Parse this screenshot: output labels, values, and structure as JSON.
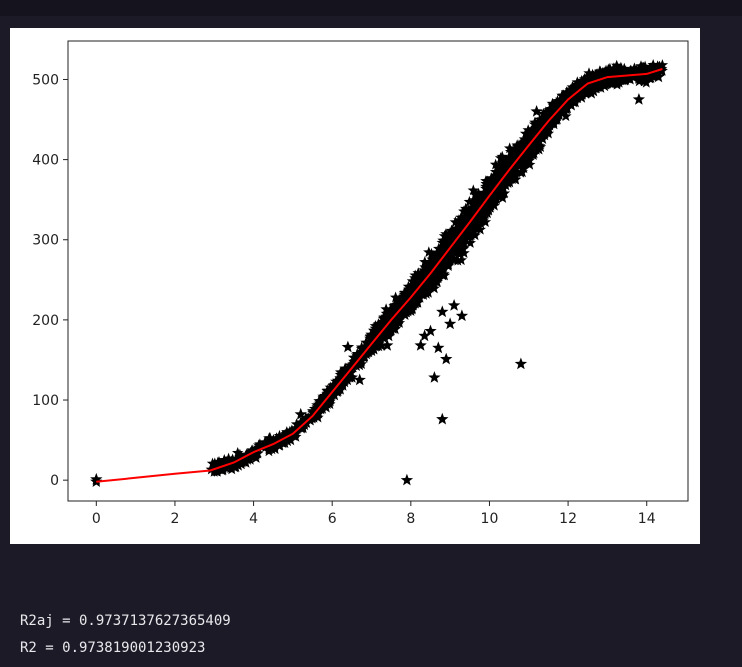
{
  "output": {
    "lines": [
      "R2aj = 0.9737137627365409",
      "R2 = 0.973819001230923"
    ]
  },
  "chart_data": {
    "type": "scatter",
    "xlabel": "",
    "ylabel": "",
    "xlim": [
      -0.72,
      15.05
    ],
    "ylim": [
      -26,
      548
    ],
    "xticks": [
      0,
      2,
      4,
      6,
      8,
      10,
      12,
      14
    ],
    "yticks": [
      0,
      100,
      200,
      300,
      400,
      500
    ],
    "grid": false,
    "marker": "star",
    "colors": {
      "points": "#000000",
      "fit": "#ff0000"
    },
    "fit_line": {
      "x": [
        0,
        1,
        2,
        2.9,
        3.5,
        4.0,
        4.5,
        5.0,
        5.5,
        6.0,
        6.5,
        7.0,
        7.5,
        8.0,
        8.5,
        9.0,
        9.5,
        10.0,
        10.5,
        11.0,
        11.5,
        12.0,
        12.5,
        13.0,
        13.5,
        14.0,
        14.4
      ],
      "y": [
        -2,
        3,
        8,
        12,
        22,
        35,
        45,
        58,
        80,
        110,
        140,
        170,
        200,
        228,
        258,
        290,
        322,
        355,
        387,
        418,
        448,
        475,
        495,
        503,
        505,
        507,
        513
      ]
    },
    "outliers": {
      "x": [
        0,
        0,
        7.9,
        8.8,
        8.6,
        8.9,
        8.7,
        10.8,
        8.25,
        8.35,
        9.0,
        9.1,
        9.3,
        8.5,
        6.4,
        8.8,
        11.2,
        13.8,
        14.3,
        4.4,
        5.2,
        6.5,
        6.7,
        7.4
      ],
      "y": [
        1,
        -2,
        0,
        76,
        128,
        151,
        165,
        145,
        168,
        180,
        195,
        218,
        205,
        186,
        166,
        210,
        460,
        475,
        503,
        52,
        82,
        128,
        125,
        168
      ]
    }
  }
}
